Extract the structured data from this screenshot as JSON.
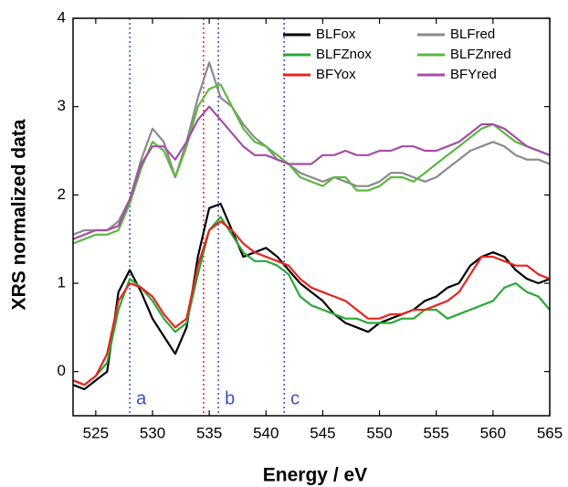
{
  "chart_data": {
    "type": "line",
    "x_label": "Energy / eV",
    "y_label": "XRS normalized data",
    "x": [
      523,
      524,
      525,
      526,
      527,
      528,
      529,
      530,
      531,
      532,
      533,
      534,
      535,
      536,
      537,
      538,
      539,
      540,
      541,
      542,
      543,
      544,
      545,
      546,
      547,
      548,
      549,
      550,
      551,
      552,
      553,
      554,
      555,
      556,
      557,
      558,
      559,
      560,
      561,
      562,
      563,
      564,
      565
    ],
    "series": [
      {
        "name": "BLFox",
        "color": "#000000",
        "values": [
          -0.15,
          -0.2,
          -0.1,
          0.0,
          0.9,
          1.15,
          0.9,
          0.6,
          0.4,
          0.2,
          0.5,
          1.3,
          1.85,
          1.9,
          1.6,
          1.3,
          1.35,
          1.4,
          1.3,
          1.15,
          1.0,
          0.9,
          0.8,
          0.65,
          0.55,
          0.5,
          0.45,
          0.55,
          0.6,
          0.65,
          0.7,
          0.8,
          0.85,
          0.95,
          1.0,
          1.2,
          1.3,
          1.35,
          1.3,
          1.15,
          1.05,
          1.0,
          1.05
        ]
      },
      {
        "name": "BLFred",
        "color": "#8a8a8a",
        "values": [
          1.55,
          1.6,
          1.6,
          1.6,
          1.7,
          1.95,
          2.4,
          2.75,
          2.6,
          2.2,
          2.6,
          3.1,
          3.5,
          3.1,
          3.0,
          2.8,
          2.65,
          2.55,
          2.4,
          2.35,
          2.25,
          2.2,
          2.15,
          2.2,
          2.15,
          2.1,
          2.1,
          2.15,
          2.25,
          2.25,
          2.2,
          2.15,
          2.2,
          2.3,
          2.4,
          2.5,
          2.55,
          2.6,
          2.55,
          2.45,
          2.4,
          2.4,
          2.35
        ]
      },
      {
        "name": "BLFZnox",
        "color": "#2aa836",
        "values": [
          -0.1,
          -0.15,
          -0.05,
          0.1,
          0.7,
          1.05,
          0.95,
          0.8,
          0.6,
          0.45,
          0.55,
          1.1,
          1.6,
          1.75,
          1.55,
          1.35,
          1.25,
          1.25,
          1.2,
          1.1,
          0.85,
          0.75,
          0.7,
          0.65,
          0.6,
          0.6,
          0.55,
          0.55,
          0.55,
          0.6,
          0.6,
          0.7,
          0.7,
          0.6,
          0.65,
          0.7,
          0.75,
          0.8,
          0.95,
          1.0,
          0.9,
          0.85,
          0.7
        ]
      },
      {
        "name": "BLFZnred",
        "color": "#5cb840",
        "values": [
          1.45,
          1.5,
          1.55,
          1.55,
          1.6,
          1.9,
          2.3,
          2.6,
          2.5,
          2.2,
          2.55,
          3.0,
          3.2,
          3.25,
          3.0,
          2.75,
          2.6,
          2.55,
          2.45,
          2.35,
          2.2,
          2.15,
          2.1,
          2.2,
          2.2,
          2.05,
          2.05,
          2.1,
          2.2,
          2.2,
          2.15,
          2.25,
          2.35,
          2.45,
          2.55,
          2.65,
          2.75,
          2.8,
          2.7,
          2.6,
          2.55,
          2.5,
          2.45
        ]
      },
      {
        "name": "BFYox",
        "color": "#e8231f",
        "values": [
          -0.1,
          -0.15,
          -0.05,
          0.2,
          0.8,
          1.0,
          0.95,
          0.85,
          0.65,
          0.5,
          0.6,
          1.2,
          1.6,
          1.7,
          1.6,
          1.45,
          1.35,
          1.3,
          1.25,
          1.2,
          1.05,
          0.95,
          0.9,
          0.85,
          0.8,
          0.7,
          0.6,
          0.6,
          0.65,
          0.65,
          0.7,
          0.7,
          0.75,
          0.8,
          0.9,
          1.1,
          1.3,
          1.3,
          1.25,
          1.2,
          1.2,
          1.1,
          1.05
        ]
      },
      {
        "name": "BFYred",
        "color": "#a64ca6",
        "values": [
          1.5,
          1.55,
          1.6,
          1.6,
          1.65,
          1.95,
          2.35,
          2.55,
          2.55,
          2.4,
          2.6,
          2.85,
          3.0,
          2.85,
          2.7,
          2.55,
          2.45,
          2.45,
          2.4,
          2.35,
          2.35,
          2.35,
          2.45,
          2.45,
          2.5,
          2.45,
          2.45,
          2.5,
          2.5,
          2.55,
          2.55,
          2.5,
          2.5,
          2.55,
          2.6,
          2.7,
          2.8,
          2.8,
          2.75,
          2.65,
          2.55,
          2.5,
          2.45
        ]
      }
    ],
    "vlines": [
      {
        "x": 528,
        "color": "#3b4fc4",
        "label": "a"
      },
      {
        "x": 534.5,
        "color": "#e8231f"
      },
      {
        "x": 535.8,
        "color": "#3b4fc4",
        "label": "b"
      },
      {
        "x": 541.6,
        "color": "#3b4fc4",
        "label": "c"
      }
    ],
    "xlim": [
      523,
      565
    ],
    "ylim": [
      -0.5,
      4
    ],
    "xticks": [
      525,
      530,
      535,
      540,
      545,
      550,
      555,
      560,
      565
    ],
    "yticks": [
      0,
      1,
      2,
      3,
      4
    ],
    "legend": "upper right",
    "grid": false
  }
}
